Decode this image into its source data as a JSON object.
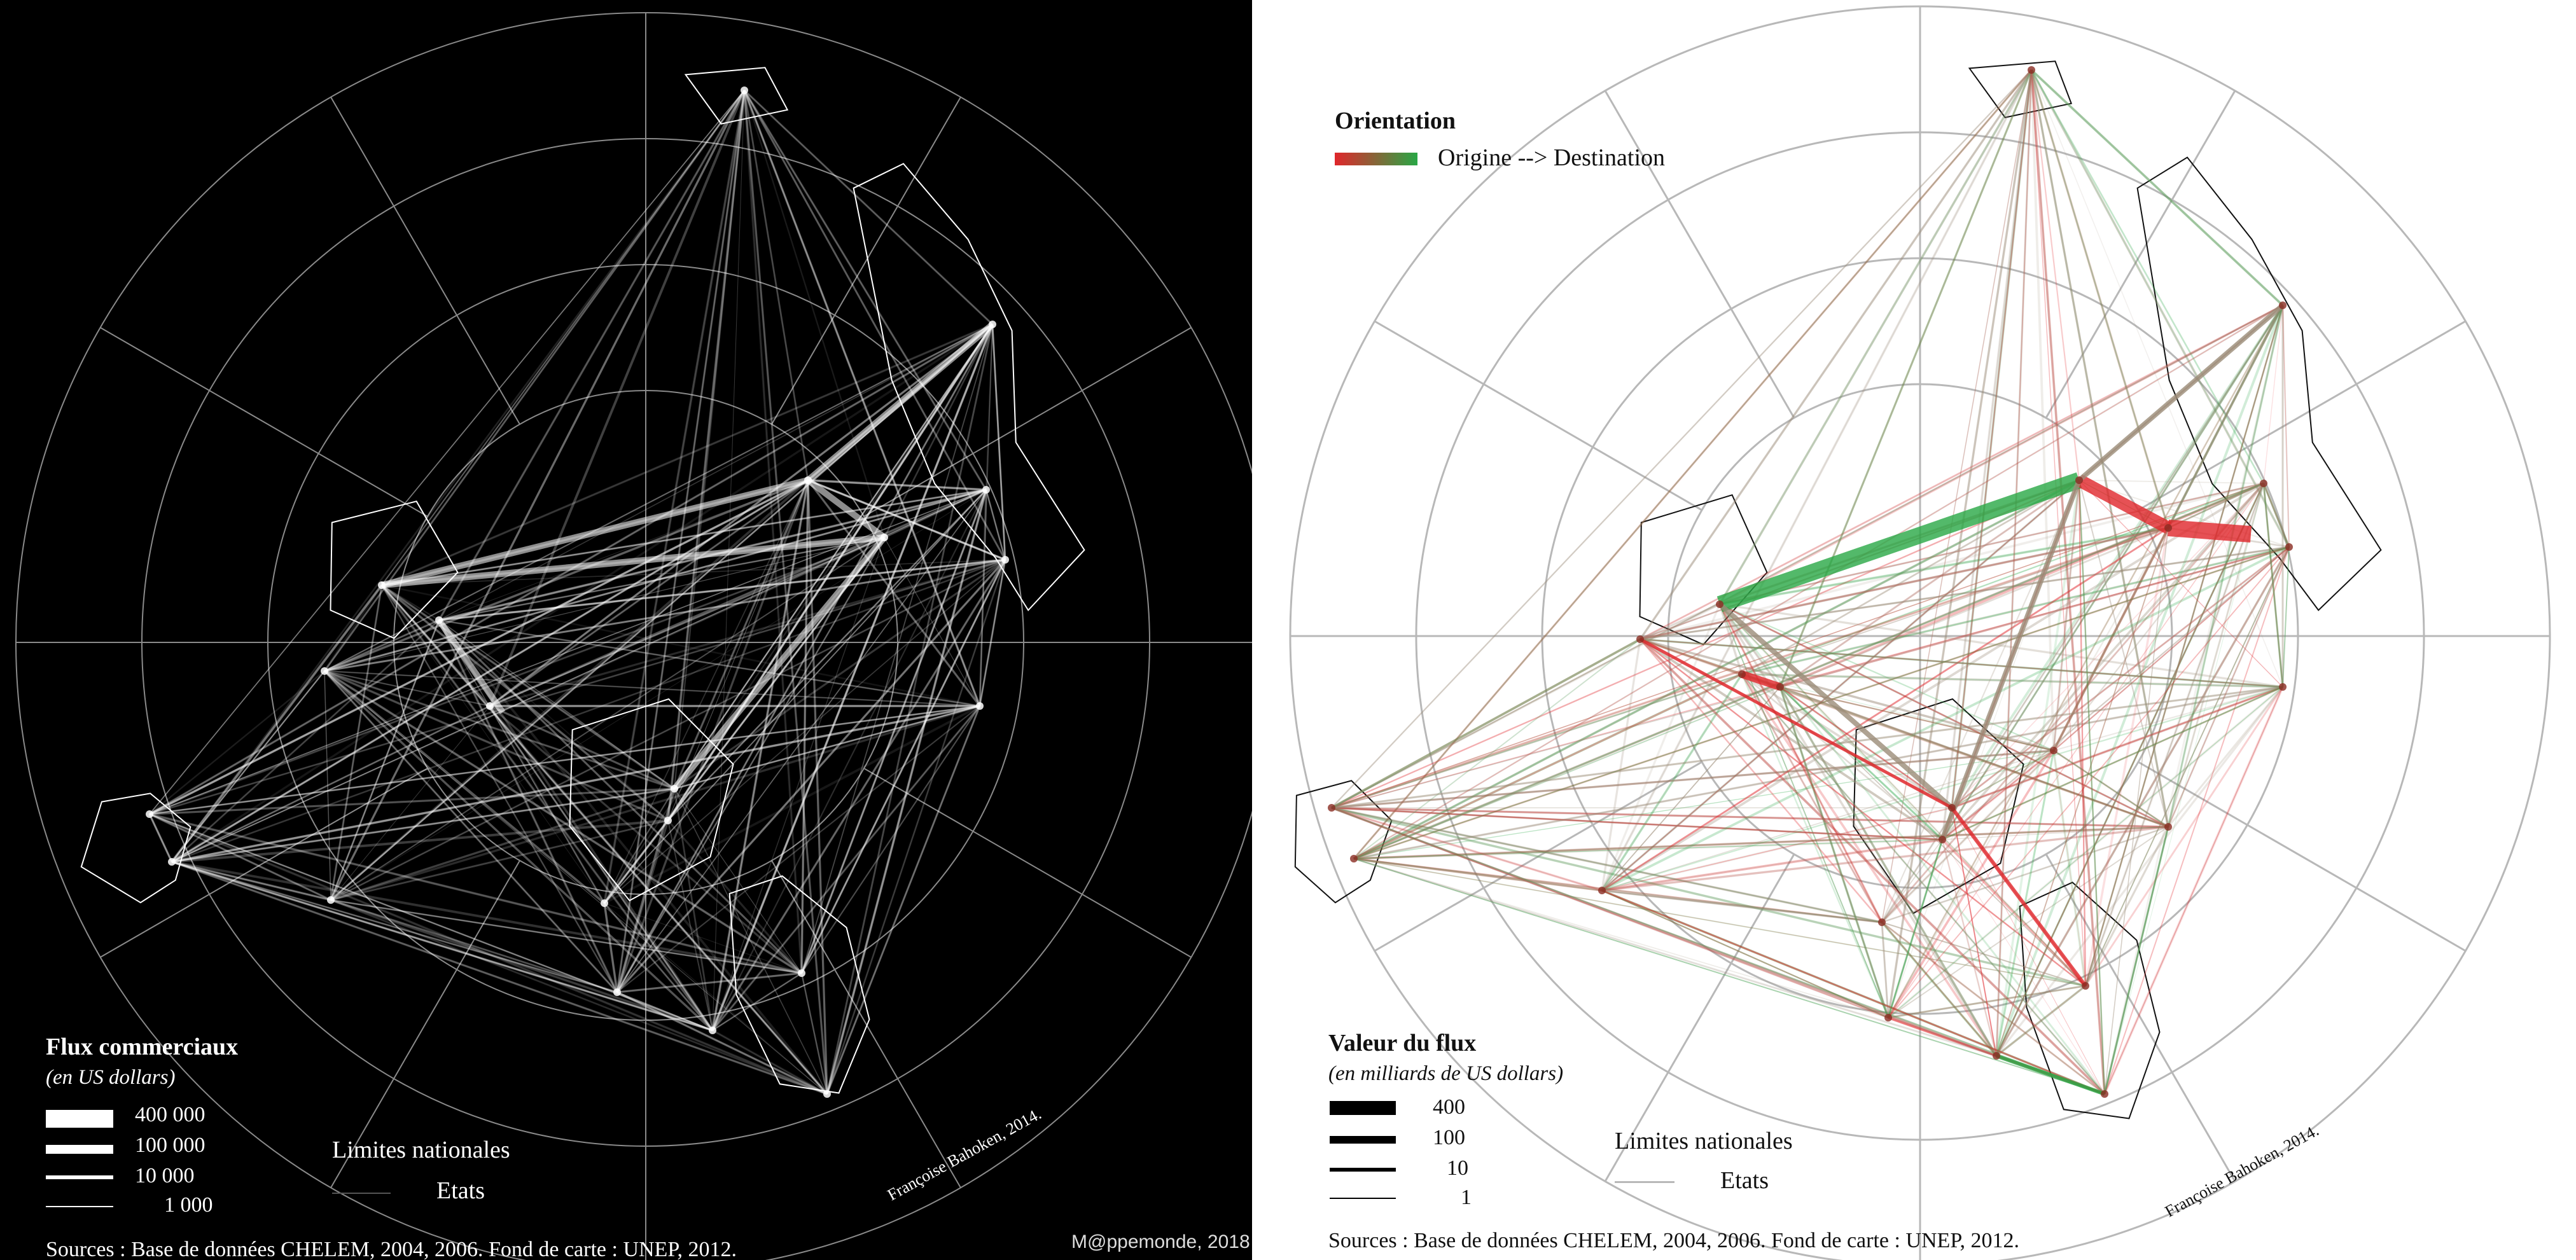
{
  "colors": {
    "left_background": "#000000",
    "left_flow": "#ffffff",
    "right_background": "#ffffff",
    "right_flow_neutral": "#9b8c78",
    "origin": "#e0262b",
    "destination": "#28a745",
    "graticule_left": "#8a8a8a",
    "graticule_right": "#b8b8b8",
    "coast_left": "#ffffff",
    "coast_right": "#111111"
  },
  "left_map": {
    "legend": {
      "title": "Flux commerciaux",
      "subtitle": "(en US dollars)",
      "values": [
        "400 000",
        "100 000",
        "10 000",
        "1 000"
      ],
      "boundaries_label": "Limites nationales",
      "states_label": "Etats"
    },
    "credit": "Françoise Bahoken, 2014.",
    "sources": "Sources : Base de données CHELEM, 2004, 2006. Fond de carte : UNEP, 2012.",
    "watermark": "M@ppemonde, 2018"
  },
  "right_map": {
    "orientation_title": "Orientation",
    "orientation_label": "Origine --> Destination",
    "legend": {
      "title": "Valeur du flux",
      "subtitle": "(en milliards de US dollars)",
      "values": [
        "400",
        "100",
        "10",
        "1"
      ],
      "boundaries_label": "Limites nationales",
      "states_label": "Etats"
    },
    "credit": "Françoise Bahoken, 2014.",
    "sources": "Sources : Base de données CHELEM, 2004, 2006. Fond de carte : UNEP, 2012."
  }
}
